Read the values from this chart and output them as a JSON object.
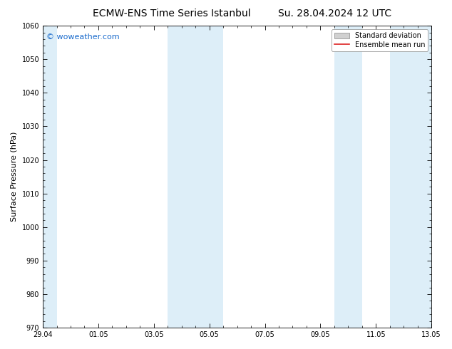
{
  "title_left": "ECMW-ENS Time Series Istanbul",
  "title_right": "Su. 28.04.2024 12 UTC",
  "ylabel": "Surface Pressure (hPa)",
  "ylim": [
    970,
    1060
  ],
  "yticks": [
    970,
    980,
    990,
    1000,
    1010,
    1020,
    1030,
    1040,
    1050,
    1060
  ],
  "xtick_labels": [
    "29.04",
    "01.05",
    "03.05",
    "05.05",
    "07.05",
    "09.05",
    "11.05",
    "13.05"
  ],
  "xtick_positions": [
    0,
    2,
    4,
    6,
    8,
    10,
    12,
    14
  ],
  "xlim": [
    0,
    14
  ],
  "shaded_bands": [
    {
      "x_start": 0.0,
      "x_end": 0.5,
      "color": "#ddeef8"
    },
    {
      "x_start": 4.5,
      "x_end": 5.5,
      "color": "#ddeef8"
    },
    {
      "x_start": 5.5,
      "x_end": 6.5,
      "color": "#ddeef8"
    },
    {
      "x_start": 10.5,
      "x_end": 11.5,
      "color": "#ddeef8"
    },
    {
      "x_start": 12.5,
      "x_end": 14.0,
      "color": "#ddeef8"
    }
  ],
  "watermark_text": "© woweather.com",
  "watermark_color": "#1a6bcc",
  "legend_std_label": "Standard deviation",
  "legend_mean_label": "Ensemble mean run",
  "legend_std_facecolor": "#d0d0d0",
  "legend_std_edgecolor": "#888888",
  "legend_mean_color": "#dd2222",
  "bg_color": "#ffffff",
  "title_fontsize": 10,
  "tick_fontsize": 7,
  "ylabel_fontsize": 8,
  "watermark_fontsize": 8,
  "legend_fontsize": 7
}
